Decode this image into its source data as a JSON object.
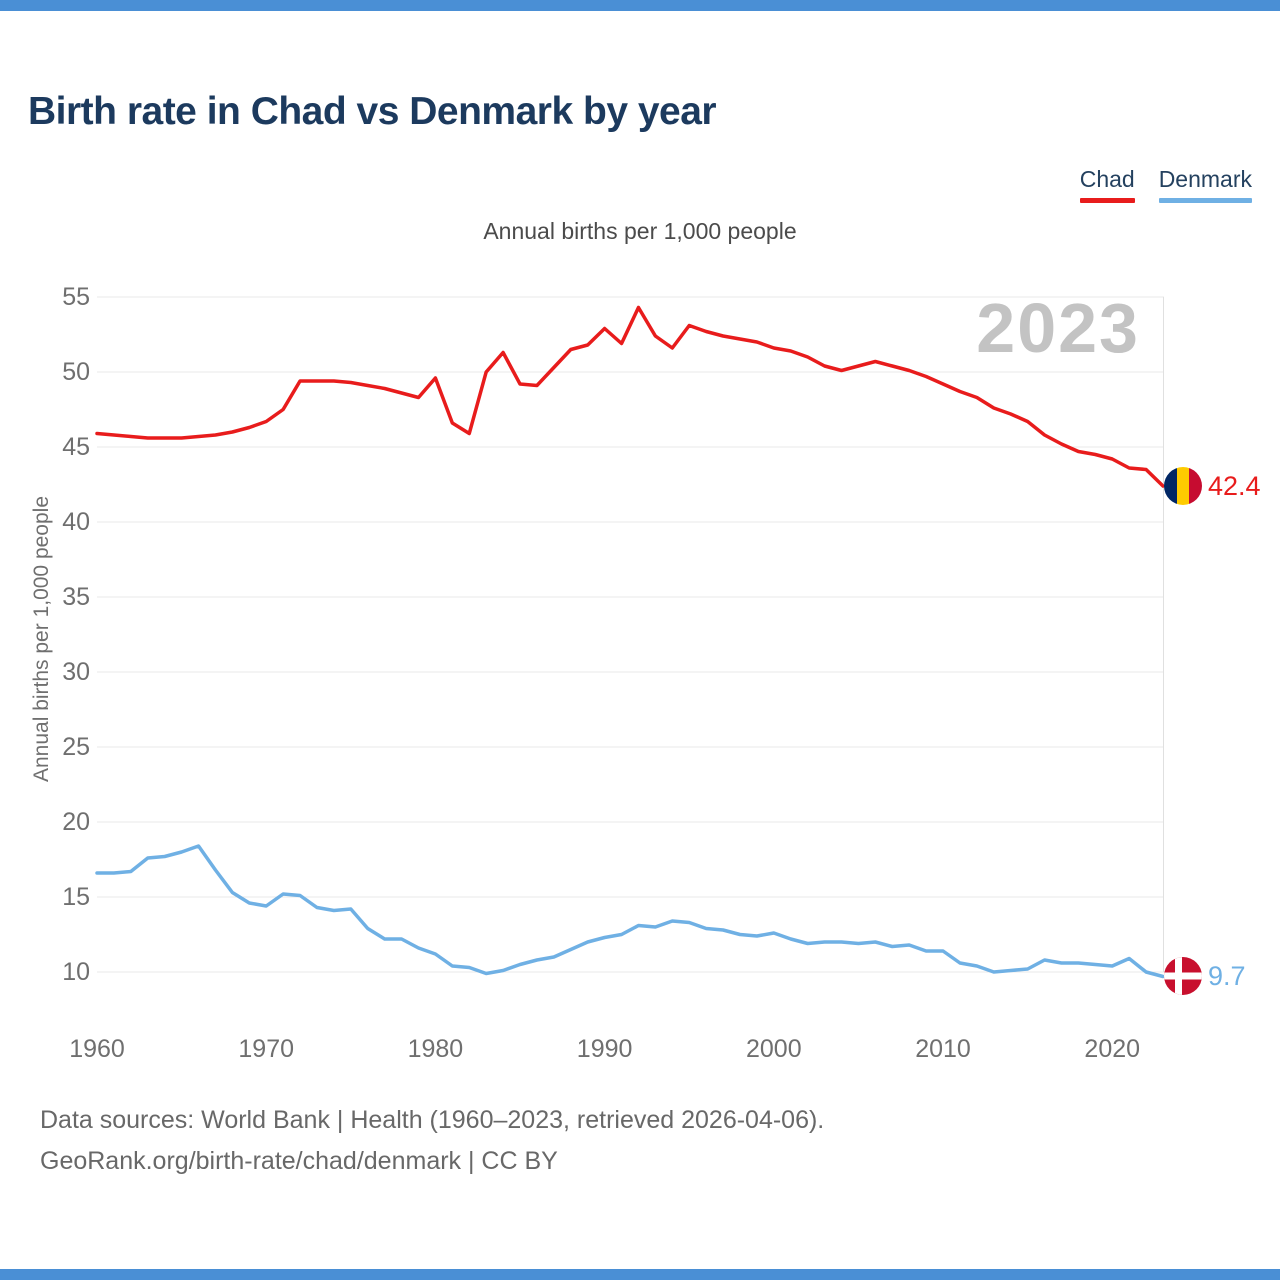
{
  "header": {
    "title": "Birth rate in Chad vs Denmark by year"
  },
  "legend": {
    "items": [
      {
        "label": "Chad",
        "color": "#e81c1c"
      },
      {
        "label": "Denmark",
        "color": "#6fb0e4"
      }
    ]
  },
  "chart": {
    "subtitle": "Annual births per 1,000 people",
    "y_axis_title": "Annual births per 1,000 people",
    "watermark": "2023",
    "end_labels": [
      {
        "series": "Chad",
        "value": "42.4"
      },
      {
        "series": "Denmark",
        "value": "9.7"
      }
    ]
  },
  "footer": {
    "line1": "Data sources: World Bank | Health (1960–2023, retrieved 2026-04-06).",
    "line2": "GeoRank.org/birth-rate/chad/denmark | CC BY"
  },
  "theme": {
    "accent_bar_color": "#4a8fd5",
    "grid_color": "#eaeaea",
    "plot_border_color": "#e0e0e0",
    "axis_text_color": "#6f6f6f",
    "title_color": "#1c3a5e",
    "watermark_color": "#c3c3c3"
  },
  "icons": {
    "chad_flag": "chad-flag-icon",
    "denmark_flag": "denmark-flag-icon"
  },
  "chart_data": {
    "type": "line",
    "title": "Birth rate in Chad vs Denmark by year",
    "subtitle": "Annual births per 1,000 people",
    "xlabel": "",
    "ylabel": "Annual births per 1,000 people",
    "ylim": [
      10,
      55
    ],
    "y_ticks": [
      10,
      15,
      20,
      25,
      30,
      35,
      40,
      45,
      50,
      55
    ],
    "x_ticks": [
      1960,
      1970,
      1980,
      1990,
      2000,
      2010,
      2020
    ],
    "grid": "horizontal",
    "legend_position": "top-right",
    "x": [
      1960,
      1961,
      1962,
      1963,
      1964,
      1965,
      1966,
      1967,
      1968,
      1969,
      1970,
      1971,
      1972,
      1973,
      1974,
      1975,
      1976,
      1977,
      1978,
      1979,
      1980,
      1981,
      1982,
      1983,
      1984,
      1985,
      1986,
      1987,
      1988,
      1989,
      1990,
      1991,
      1992,
      1993,
      1994,
      1995,
      1996,
      1997,
      1998,
      1999,
      2000,
      2001,
      2002,
      2003,
      2004,
      2005,
      2006,
      2007,
      2008,
      2009,
      2010,
      2011,
      2012,
      2013,
      2014,
      2015,
      2016,
      2017,
      2018,
      2019,
      2020,
      2021,
      2022,
      2023
    ],
    "series": [
      {
        "name": "Chad",
        "color": "#e81c1c",
        "end_value": 42.4,
        "values": [
          45.9,
          45.8,
          45.7,
          45.6,
          45.6,
          45.6,
          45.7,
          45.8,
          46.0,
          46.3,
          46.7,
          47.5,
          49.4,
          49.4,
          49.4,
          49.3,
          49.1,
          48.9,
          48.6,
          48.3,
          49.6,
          46.6,
          45.9,
          50.0,
          51.3,
          49.2,
          49.1,
          50.3,
          51.5,
          51.8,
          52.9,
          51.9,
          54.3,
          52.4,
          51.6,
          53.1,
          52.7,
          52.4,
          52.2,
          52.0,
          51.6,
          51.4,
          51.0,
          50.4,
          50.1,
          50.4,
          50.7,
          50.4,
          50.1,
          49.7,
          49.2,
          48.7,
          48.3,
          47.6,
          47.2,
          46.7,
          45.8,
          45.2,
          44.7,
          44.5,
          44.2,
          43.6,
          43.5,
          42.4
        ]
      },
      {
        "name": "Denmark",
        "color": "#6fb0e4",
        "end_value": 9.7,
        "values": [
          16.6,
          16.6,
          16.7,
          17.6,
          17.7,
          18.0,
          18.4,
          16.8,
          15.3,
          14.6,
          14.4,
          15.2,
          15.1,
          14.3,
          14.1,
          14.2,
          12.9,
          12.2,
          12.2,
          11.6,
          11.2,
          10.4,
          10.3,
          9.9,
          10.1,
          10.5,
          10.8,
          11.0,
          11.5,
          12.0,
          12.3,
          12.5,
          13.1,
          13.0,
          13.4,
          13.3,
          12.9,
          12.8,
          12.5,
          12.4,
          12.6,
          12.2,
          11.9,
          12.0,
          12.0,
          11.9,
          12.0,
          11.7,
          11.8,
          11.4,
          11.4,
          10.6,
          10.4,
          10.0,
          10.1,
          10.2,
          10.8,
          10.6,
          10.6,
          10.5,
          10.4,
          10.9,
          10.0,
          9.7
        ]
      }
    ]
  }
}
